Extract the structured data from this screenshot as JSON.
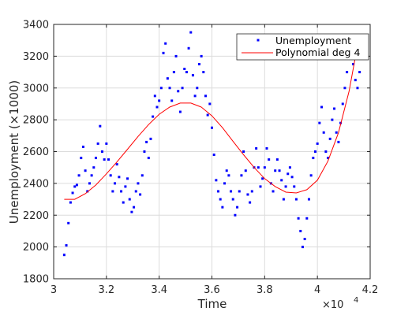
{
  "chart_data": {
    "type": "scatter",
    "xlabel": "Time",
    "ylabel": "Unemployment (×1000)",
    "x_exponent_label": "×10",
    "x_exponent_power": "4",
    "xlim": [
      30000,
      42000
    ],
    "ylim": [
      1800,
      3400
    ],
    "x_ticks": [
      30000,
      32000,
      34000,
      36000,
      38000,
      40000,
      42000
    ],
    "x_tick_labels": [
      "3",
      "3.2",
      "3.4",
      "3.6",
      "3.8",
      "4",
      "4.2"
    ],
    "y_ticks": [
      1800,
      2000,
      2200,
      2400,
      2600,
      2800,
      3000,
      3200,
      3400
    ],
    "y_tick_labels": [
      "1800",
      "2000",
      "2200",
      "2400",
      "2600",
      "2800",
      "3000",
      "3200",
      "3400"
    ],
    "grid": true,
    "legend_position": "top-right",
    "colors": {
      "scatter": "#0000ff",
      "fit": "#ff0000",
      "grid": "#dcdcdc",
      "axis": "#262626"
    },
    "series": [
      {
        "name": "Unemployment",
        "kind": "scatter",
        "x": [
          30400,
          30480,
          30560,
          30640,
          30720,
          30800,
          30880,
          30960,
          31040,
          31120,
          31200,
          31280,
          31360,
          31440,
          31520,
          31600,
          31680,
          31760,
          31840,
          31920,
          32000,
          32080,
          32160,
          32240,
          32320,
          32400,
          32480,
          32560,
          32640,
          32720,
          32800,
          32880,
          32960,
          33040,
          33120,
          33200,
          33280,
          33360,
          33440,
          33520,
          33600,
          33680,
          33760,
          33840,
          33920,
          34000,
          34080,
          34160,
          34240,
          34320,
          34400,
          34480,
          34560,
          34640,
          34720,
          34800,
          34880,
          34960,
          35040,
          35120,
          35200,
          35280,
          35360,
          35440,
          35520,
          35600,
          35680,
          35760,
          35840,
          35920,
          36000,
          36080,
          36160,
          36240,
          36320,
          36400,
          36480,
          36560,
          36640,
          36720,
          36800,
          36880,
          36960,
          37040,
          37120,
          37200,
          37280,
          37360,
          37440,
          37520,
          37600,
          37680,
          37760,
          37840,
          37920,
          38000,
          38080,
          38160,
          38240,
          38320,
          38400,
          38480,
          38560,
          38640,
          38720,
          38800,
          38880,
          38960,
          39040,
          39120,
          39200,
          39280,
          39360,
          39440,
          39520,
          39600,
          39680,
          39760,
          39840,
          39920,
          40000,
          40080,
          40160,
          40240,
          40320,
          40400,
          40480,
          40560,
          40640,
          40720,
          40800,
          40880,
          40960,
          41040,
          41120,
          41200,
          41280,
          41360,
          41440,
          41520,
          41600
        ],
        "y": [
          1950,
          2010,
          2150,
          2280,
          2340,
          2380,
          2390,
          2450,
          2560,
          2630,
          2480,
          2350,
          2400,
          2450,
          2500,
          2560,
          2650,
          2760,
          2600,
          2550,
          2650,
          2550,
          2450,
          2350,
          2400,
          2520,
          2440,
          2350,
          2280,
          2380,
          2430,
          2300,
          2220,
          2250,
          2350,
          2400,
          2330,
          2450,
          2600,
          2660,
          2560,
          2680,
          2820,
          2950,
          2880,
          2920,
          3000,
          3220,
          3280,
          3060,
          3000,
          2920,
          3100,
          3200,
          2980,
          2850,
          3000,
          3120,
          3100,
          3250,
          3350,
          3080,
          2950,
          3000,
          3150,
          3200,
          3100,
          2950,
          2830,
          2900,
          2750,
          2580,
          2420,
          2350,
          2300,
          2250,
          2400,
          2480,
          2450,
          2350,
          2300,
          2200,
          2250,
          2350,
          2450,
          2600,
          2480,
          2330,
          2280,
          2350,
          2500,
          2620,
          2500,
          2380,
          2430,
          2500,
          2620,
          2550,
          2400,
          2350,
          2480,
          2550,
          2480,
          2420,
          2300,
          2380,
          2460,
          2500,
          2440,
          2380,
          2300,
          2180,
          2100,
          2000,
          2050,
          2180,
          2300,
          2450,
          2560,
          2600,
          2650,
          2780,
          2880,
          2720,
          2600,
          2560,
          2680,
          2800,
          2870,
          2720,
          2660,
          2780,
          2900,
          3000,
          3100,
          3200,
          3280,
          3150,
          3050,
          3000,
          3100
        ]
      },
      {
        "name": "Polynomial deg 4",
        "kind": "line",
        "x": [
          30400,
          30800,
          31200,
          31600,
          32000,
          32400,
          32800,
          33200,
          33600,
          34000,
          34400,
          34800,
          35200,
          35600,
          36000,
          36400,
          36800,
          37200,
          37600,
          38000,
          38400,
          38800,
          39200,
          39600,
          40000,
          40400,
          40800,
          41200,
          41600
        ],
        "y": [
          2300,
          2300,
          2335,
          2390,
          2460,
          2535,
          2615,
          2695,
          2770,
          2835,
          2880,
          2905,
          2905,
          2880,
          2825,
          2750,
          2665,
          2580,
          2500,
          2430,
          2380,
          2345,
          2340,
          2360,
          2420,
          2540,
          2720,
          2980,
          3340
        ]
      }
    ]
  }
}
